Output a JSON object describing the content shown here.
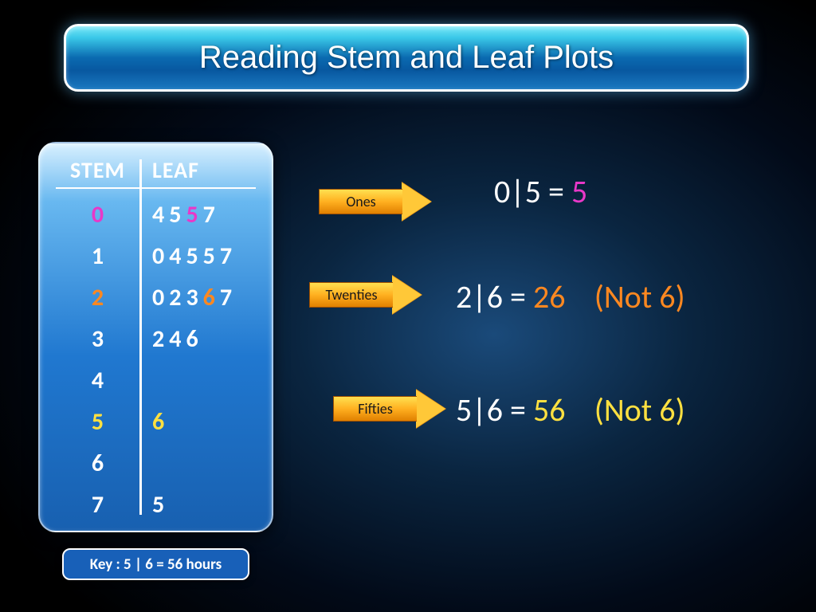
{
  "title": "Reading Stem and Leaf Plots",
  "colors": {
    "magenta": "#e838c8",
    "orange": "#ff8820",
    "yellow": "#ffe040",
    "white": "#ffffff"
  },
  "table": {
    "headers": {
      "stem": "STEM",
      "leaf": "LEAF"
    },
    "rows": [
      {
        "stem": "0",
        "stem_color": "#e838c8",
        "leaves": [
          {
            "v": "4",
            "c": "#ffffff"
          },
          {
            "v": "5",
            "c": "#ffffff"
          },
          {
            "v": "5",
            "c": "#e838c8"
          },
          {
            "v": "7",
            "c": "#ffffff"
          }
        ]
      },
      {
        "stem": "1",
        "stem_color": "#ffffff",
        "leaves": [
          {
            "v": "0",
            "c": "#ffffff"
          },
          {
            "v": "4",
            "c": "#ffffff"
          },
          {
            "v": "5",
            "c": "#ffffff"
          },
          {
            "v": "5",
            "c": "#ffffff"
          },
          {
            "v": "7",
            "c": "#ffffff"
          }
        ]
      },
      {
        "stem": "2",
        "stem_color": "#ff8820",
        "leaves": [
          {
            "v": "0",
            "c": "#ffffff"
          },
          {
            "v": "2",
            "c": "#ffffff"
          },
          {
            "v": "3",
            "c": "#ffffff"
          },
          {
            "v": "6",
            "c": "#ff8820"
          },
          {
            "v": "7",
            "c": "#ffffff"
          }
        ]
      },
      {
        "stem": "3",
        "stem_color": "#ffffff",
        "leaves": [
          {
            "v": "2",
            "c": "#ffffff"
          },
          {
            "v": "4",
            "c": "#ffffff"
          },
          {
            "v": "6",
            "c": "#ffffff"
          }
        ]
      },
      {
        "stem": "4",
        "stem_color": "#ffffff",
        "leaves": []
      },
      {
        "stem": "5",
        "stem_color": "#ffe040",
        "leaves": [
          {
            "v": "6",
            "c": "#ffe040"
          }
        ]
      },
      {
        "stem": "6",
        "stem_color": "#ffffff",
        "leaves": []
      },
      {
        "stem": "7",
        "stem_color": "#ffffff",
        "leaves": [
          {
            "v": " 5",
            "c": "#ffffff"
          }
        ]
      }
    ]
  },
  "key": "Key :  5 | 6 = 56 hours",
  "arrows": {
    "ones": "Ones",
    "twenties": "Twenties",
    "fifties": "Fifties"
  },
  "explain": {
    "line1": {
      "prefix": "0|5  =  ",
      "value": "5",
      "value_color": "#e838c8"
    },
    "line2": {
      "prefix": "2|6 = ",
      "value": "26",
      "value_color": "#ff8820",
      "note": "(Not 6)",
      "note_color": "#ff8820"
    },
    "line3": {
      "prefix": "5|6 = ",
      "value": "56",
      "value_color": "#ffe040",
      "note": "(Not 6)",
      "note_color": "#ffe040"
    }
  }
}
